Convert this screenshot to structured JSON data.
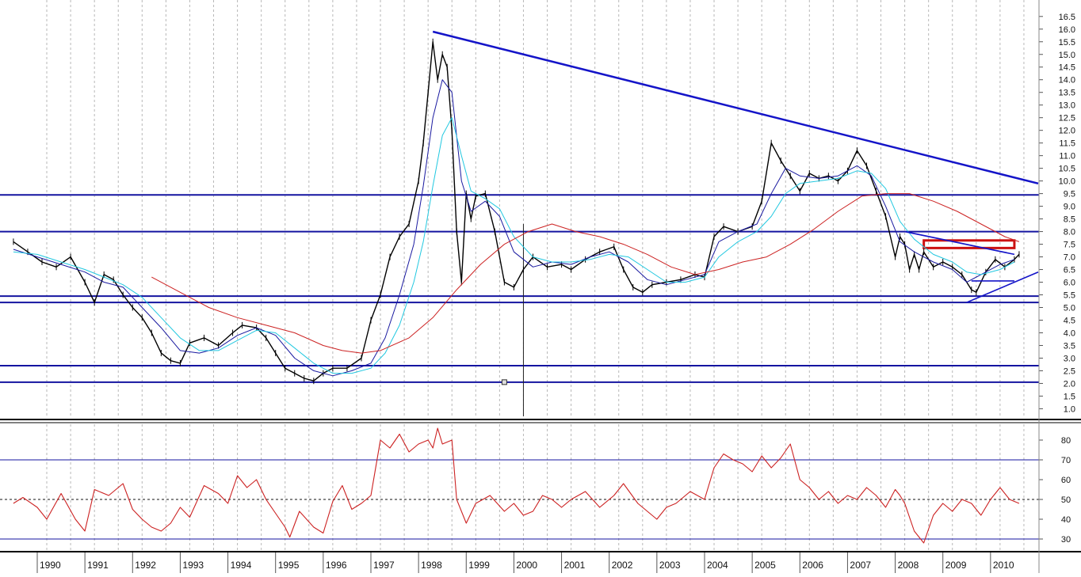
{
  "chart_data": [
    {
      "type": "line",
      "panel": "price",
      "yticks": [
        1.0,
        1.5,
        2.0,
        2.5,
        3.0,
        3.5,
        4.0,
        4.5,
        5.0,
        5.5,
        6.0,
        6.5,
        7.0,
        7.5,
        8.0,
        8.5,
        9.0,
        9.5,
        10.0,
        10.5,
        11.0,
        11.5,
        12.0,
        12.5,
        13.0,
        13.5,
        14.0,
        14.5,
        15.0,
        15.5,
        16.0,
        16.5
      ],
      "ylim": [
        0.7,
        16.9
      ],
      "grid": true,
      "series": [
        {
          "color": "#000000",
          "x": [
            1989.3,
            1989.6,
            1989.9,
            1990.2,
            1990.5,
            1990.8,
            1991.0,
            1991.2,
            1991.4,
            1991.6,
            1991.8,
            1992.0,
            1992.2,
            1992.4,
            1992.6,
            1992.8,
            1993.0,
            1993.3,
            1993.6,
            1993.9,
            1994.1,
            1994.4,
            1994.6,
            1994.8,
            1995.0,
            1995.2,
            1995.4,
            1995.6,
            1995.8,
            1996.0,
            1996.3,
            1996.6,
            1996.8,
            1997.0,
            1997.2,
            1997.4,
            1997.6,
            1997.8,
            1997.9,
            1998.0,
            1998.1,
            1998.2,
            1998.3,
            1998.4,
            1998.5,
            1998.6,
            1998.7,
            1998.8,
            1998.9,
            1999.0,
            1999.2,
            1999.4,
            1999.6,
            1999.8,
            2000.0,
            2000.2,
            2000.5,
            2000.8,
            2001.0,
            2001.3,
            2001.6,
            2001.9,
            2002.1,
            2002.3,
            2002.5,
            2002.7,
            2003.0,
            2003.3,
            2003.6,
            2003.8,
            2004.0,
            2004.2,
            2004.5,
            2004.8,
            2005.0,
            2005.2,
            2005.4,
            2005.6,
            2005.8,
            2006.0,
            2006.2,
            2006.4,
            2006.6,
            2006.8,
            2007.0,
            2007.2,
            2007.4,
            2007.6,
            2007.8,
            2007.9,
            2008.0,
            2008.1,
            2008.2,
            2008.3,
            2008.4,
            2008.6,
            2008.8,
            2009.0,
            2009.2,
            2009.4,
            2009.5,
            2009.7,
            2009.9,
            2010.1,
            2010.3,
            2010.4
          ],
          "y": [
            7.6,
            7.2,
            6.8,
            6.6,
            7.0,
            6.0,
            5.2,
            6.3,
            6.1,
            5.5,
            5.0,
            4.6,
            4.0,
            3.2,
            2.9,
            2.8,
            3.6,
            3.8,
            3.5,
            4.0,
            4.3,
            4.2,
            3.8,
            3.2,
            2.6,
            2.4,
            2.2,
            2.1,
            2.4,
            2.6,
            2.6,
            3.0,
            4.5,
            5.5,
            7.0,
            7.8,
            8.3,
            10.0,
            11.5,
            13.5,
            15.5,
            14.0,
            15.0,
            14.5,
            12.0,
            8.0,
            6.0,
            9.5,
            8.5,
            9.4,
            9.5,
            8.0,
            6.0,
            5.8,
            6.5,
            7.0,
            6.6,
            6.7,
            6.5,
            6.9,
            7.2,
            7.4,
            6.5,
            5.8,
            5.6,
            5.9,
            6.0,
            6.1,
            6.3,
            6.2,
            7.8,
            8.2,
            8.0,
            8.2,
            9.2,
            11.5,
            10.8,
            10.2,
            9.6,
            10.3,
            10.1,
            10.2,
            10.0,
            10.4,
            11.2,
            10.6,
            9.6,
            8.6,
            7.0,
            7.8,
            7.5,
            6.5,
            7.1,
            6.5,
            7.2,
            6.6,
            6.8,
            6.6,
            6.3,
            5.7,
            5.6,
            6.4,
            6.9,
            6.6,
            6.9,
            7.1
          ]
        },
        {
          "color": "#1a1aa0",
          "x": [
            1989.3,
            1989.8,
            1990.3,
            1990.8,
            1991.2,
            1991.6,
            1992.0,
            1992.4,
            1992.8,
            1993.2,
            1993.6,
            1994.0,
            1994.4,
            1994.8,
            1995.2,
            1995.6,
            1996.0,
            1996.4,
            1996.8,
            1997.1,
            1997.4,
            1997.7,
            1997.9,
            1998.1,
            1998.3,
            1998.5,
            1998.7,
            1998.9,
            1999.2,
            1999.5,
            1999.8,
            2000.2,
            2000.6,
            2001.0,
            2001.4,
            2001.8,
            2002.2,
            2002.6,
            2003.0,
            2003.4,
            2003.8,
            2004.1,
            2004.5,
            2004.9,
            2005.2,
            2005.5,
            2005.8,
            2006.2,
            2006.6,
            2007.0,
            2007.3,
            2007.6,
            2007.9,
            2008.2,
            2008.6,
            2009.0,
            2009.3,
            2009.6,
            2010.0,
            2010.3
          ],
          "y": [
            7.3,
            7.0,
            6.7,
            6.4,
            6.0,
            5.8,
            5.0,
            4.2,
            3.3,
            3.2,
            3.4,
            3.9,
            4.2,
            3.9,
            3.0,
            2.5,
            2.3,
            2.5,
            2.8,
            3.8,
            5.5,
            7.5,
            9.8,
            12.5,
            14.0,
            13.5,
            10.0,
            8.8,
            9.2,
            8.6,
            7.2,
            6.6,
            6.8,
            6.7,
            7.0,
            7.2,
            6.8,
            6.1,
            5.9,
            6.1,
            6.3,
            7.6,
            8.0,
            8.3,
            9.5,
            10.5,
            10.2,
            10.1,
            10.2,
            10.6,
            10.2,
            9.0,
            7.6,
            7.2,
            6.8,
            6.5,
            6.0,
            6.3,
            6.7,
            6.9
          ]
        },
        {
          "color": "#22c8e0",
          "x": [
            1989.3,
            1989.8,
            1990.3,
            1990.8,
            1991.2,
            1991.6,
            1992.0,
            1992.4,
            1992.8,
            1993.2,
            1993.6,
            1994.0,
            1994.4,
            1994.8,
            1995.2,
            1995.6,
            1996.0,
            1996.4,
            1996.8,
            1997.1,
            1997.4,
            1997.7,
            1997.9,
            1998.1,
            1998.3,
            1998.5,
            1998.7,
            1998.9,
            1999.2,
            1999.5,
            1999.8,
            2000.2,
            2000.6,
            2001.0,
            2001.4,
            2001.8,
            2002.2,
            2002.6,
            2003.0,
            2003.4,
            2003.8,
            2004.1,
            2004.5,
            2004.9,
            2005.2,
            2005.5,
            2005.8,
            2006.2,
            2006.6,
            2007.0,
            2007.3,
            2007.6,
            2007.9,
            2008.2,
            2008.6,
            2009.0,
            2009.3,
            2009.6,
            2010.0,
            2010.3
          ],
          "y": [
            7.2,
            7.1,
            6.8,
            6.5,
            6.2,
            5.9,
            5.4,
            4.6,
            3.8,
            3.3,
            3.3,
            3.7,
            4.1,
            4.0,
            3.4,
            2.8,
            2.4,
            2.4,
            2.6,
            3.2,
            4.3,
            6.0,
            7.6,
            9.8,
            11.8,
            12.5,
            11.0,
            9.6,
            9.3,
            8.9,
            7.8,
            7.0,
            6.8,
            6.8,
            6.9,
            7.1,
            7.0,
            6.5,
            6.0,
            6.0,
            6.2,
            7.0,
            7.6,
            8.0,
            8.6,
            9.5,
            9.9,
            10.0,
            10.1,
            10.4,
            10.3,
            9.7,
            8.4,
            7.7,
            7.1,
            6.8,
            6.4,
            6.3,
            6.5,
            6.8
          ]
        },
        {
          "color": "#cc2222",
          "x": [
            1992.2,
            1992.8,
            1993.4,
            1994.0,
            1994.6,
            1995.2,
            1995.8,
            1996.2,
            1996.6,
            1997.0,
            1997.6,
            1998.1,
            1998.6,
            1999.1,
            1999.6,
            2000.1,
            2000.6,
            2001.1,
            2001.6,
            2002.1,
            2002.6,
            2003.1,
            2003.6,
            2004.1,
            2004.6,
            2005.1,
            2005.6,
            2006.1,
            2006.6,
            2007.1,
            2007.6,
            2008.1,
            2008.6,
            2009.1,
            2009.6,
            2010.1,
            2010.4
          ],
          "y": [
            6.2,
            5.6,
            5.0,
            4.6,
            4.3,
            4.0,
            3.5,
            3.3,
            3.2,
            3.3,
            3.8,
            4.6,
            5.7,
            6.7,
            7.5,
            8.0,
            8.3,
            8.0,
            7.8,
            7.5,
            7.1,
            6.6,
            6.3,
            6.5,
            6.8,
            7.0,
            7.5,
            8.1,
            8.8,
            9.4,
            9.5,
            9.5,
            9.2,
            8.8,
            8.3,
            7.8,
            7.6
          ]
        }
      ],
      "hlines": [
        2.05,
        2.7,
        5.2,
        5.45,
        8.0,
        9.45
      ],
      "trendlines": [
        {
          "x": [
            1998.1,
            2010.8
          ],
          "y": [
            15.9,
            9.9
          ]
        },
        {
          "x": [
            2008.0,
            2010.3
          ],
          "y": [
            8.0,
            7.1
          ]
        },
        {
          "x": [
            2009.3,
            2010.8
          ],
          "y": [
            5.2,
            6.4
          ]
        },
        {
          "x": [
            2009.4,
            2010.3
          ],
          "y": [
            6.05,
            6.05
          ]
        }
      ],
      "vline_x": 2000.0
    },
    {
      "type": "line",
      "panel": "oscillator",
      "yticks": [
        30,
        40,
        50,
        60,
        70,
        80
      ],
      "ylim": [
        24,
        88
      ],
      "hlines": [
        30,
        70
      ],
      "dashed_line": 50,
      "series": [
        {
          "color": "#cc2222",
          "x": [
            1989.3,
            1989.5,
            1989.8,
            1990.0,
            1990.3,
            1990.6,
            1990.8,
            1991.0,
            1991.3,
            1991.6,
            1991.8,
            1992.0,
            1992.2,
            1992.4,
            1992.6,
            1992.8,
            1993.0,
            1993.3,
            1993.6,
            1993.8,
            1994.0,
            1994.2,
            1994.4,
            1994.6,
            1994.8,
            1995.0,
            1995.1,
            1995.3,
            1995.6,
            1995.8,
            1996.0,
            1996.2,
            1996.4,
            1996.6,
            1996.8,
            1997.0,
            1997.2,
            1997.4,
            1997.6,
            1997.8,
            1998.0,
            1998.1,
            1998.2,
            1998.3,
            1998.5,
            1998.6,
            1998.8,
            1999.0,
            1999.3,
            1999.6,
            1999.8,
            2000.0,
            2000.2,
            2000.4,
            2000.6,
            2000.8,
            2001.0,
            2001.3,
            2001.6,
            2001.9,
            2002.1,
            2002.4,
            2002.6,
            2002.8,
            2003.0,
            2003.2,
            2003.5,
            2003.8,
            2004.0,
            2004.2,
            2004.4,
            2004.6,
            2004.8,
            2005.0,
            2005.2,
            2005.4,
            2005.6,
            2005.8,
            2006.0,
            2006.2,
            2006.4,
            2006.6,
            2006.8,
            2007.0,
            2007.2,
            2007.4,
            2007.6,
            2007.8,
            2007.9,
            2008.0,
            2008.2,
            2008.4,
            2008.6,
            2008.8,
            2009.0,
            2009.2,
            2009.4,
            2009.6,
            2009.8,
            2010.0,
            2010.2,
            2010.4
          ],
          "y": [
            48,
            51,
            46,
            40,
            53,
            40,
            34,
            55,
            52,
            58,
            45,
            40,
            36,
            34,
            38,
            46,
            41,
            57,
            53,
            48,
            62,
            56,
            60,
            50,
            43,
            36,
            31,
            44,
            36,
            33,
            49,
            57,
            45,
            48,
            52,
            80,
            76,
            83,
            74,
            78,
            80,
            76,
            86,
            78,
            80,
            50,
            38,
            48,
            52,
            44,
            48,
            42,
            44,
            52,
            50,
            46,
            50,
            54,
            46,
            52,
            58,
            48,
            44,
            40,
            46,
            48,
            54,
            50,
            66,
            73,
            70,
            68,
            64,
            72,
            66,
            71,
            78,
            60,
            56,
            50,
            54,
            48,
            52,
            50,
            56,
            52,
            46,
            55,
            52,
            48,
            34,
            28,
            42,
            48,
            44,
            50,
            48,
            42,
            50,
            56,
            50,
            48
          ]
        }
      ]
    }
  ],
  "xaxis": {
    "labels": [
      "1990",
      "1991",
      "1992",
      "1993",
      "1994",
      "1995",
      "1996",
      "1997",
      "1998",
      "1999",
      "2000",
      "2001",
      "2002",
      "2003",
      "2004",
      "2005",
      "2006",
      "2007",
      "2008",
      "2009",
      "2010"
    ]
  }
}
